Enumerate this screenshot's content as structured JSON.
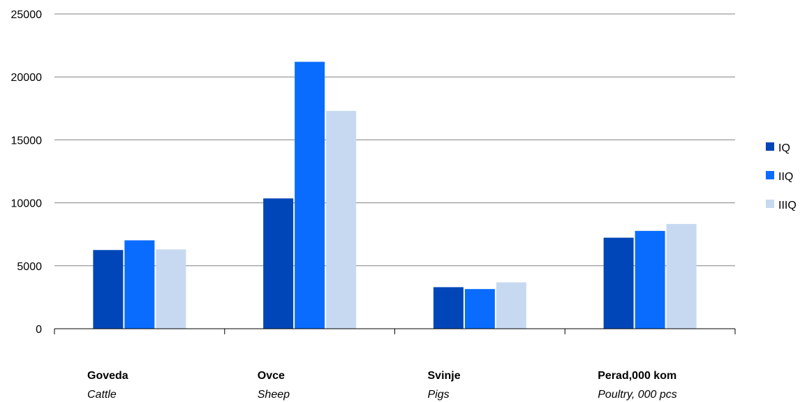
{
  "chart_data": {
    "type": "bar",
    "categories": [
      {
        "label": "Goveda",
        "sublabel": "Cattle"
      },
      {
        "label": "Ovce",
        "sublabel": "Sheep"
      },
      {
        "label": "Svinje",
        "sublabel": "Pigs"
      },
      {
        "label": "Perad,000 kom",
        "sublabel": "Poultry, 000 pcs"
      }
    ],
    "series": [
      {
        "name": "IQ",
        "color": "#0046b8",
        "values": [
          6250,
          10350,
          3300,
          7230
        ]
      },
      {
        "name": "IIQ",
        "color": "#0a6cff",
        "values": [
          7020,
          21200,
          3150,
          7770
        ]
      },
      {
        "name": "IIIQ",
        "color": "#c6d9f0",
        "values": [
          6300,
          17300,
          3680,
          8320
        ]
      }
    ],
    "yticks": [
      "0",
      "5000",
      "10000",
      "15000",
      "20000",
      "25000"
    ],
    "ylim": [
      0,
      25000
    ],
    "grid": true,
    "legend_position": "right"
  }
}
